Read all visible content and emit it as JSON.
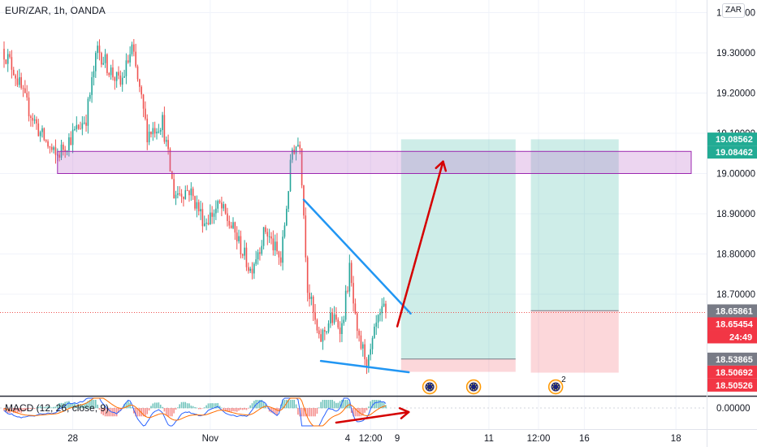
{
  "header": {
    "symbol_title": "EUR/ZAR, 1h, OANDA",
    "currency_badge": "ZAR",
    "macd_title": "MACD (12, 26, close, 9)"
  },
  "chart_data": {
    "type": "candlestick",
    "symbol": "EUR/ZAR",
    "interval": "1h",
    "source": "OANDA",
    "y_axis": {
      "ticks": [
        19.3,
        19.2,
        19.1,
        19.0,
        18.9,
        18.8,
        18.7
      ],
      "tick_labels": [
        "19.30000",
        "19.20000",
        "19.10000",
        "19.00000",
        "18.90000",
        "18.80000",
        "18.70000"
      ],
      "range": [
        18.465,
        19.44
      ],
      "partial_top_label": "19.40000"
    },
    "x_axis": {
      "ticks": [
        {
          "label": "28",
          "hour": 36
        },
        {
          "label": "Nov",
          "hour": 108
        },
        {
          "label": "4",
          "hour": 180
        },
        {
          "label": "12:00",
          "hour": 192
        },
        {
          "label": "9",
          "hour": 206
        },
        {
          "label": "11",
          "hour": 254
        },
        {
          "label": "12:00",
          "hour": 280
        },
        {
          "label": "16",
          "hour": 304
        },
        {
          "label": "18",
          "hour": 352
        }
      ],
      "range_hours": [
        0,
        380
      ]
    },
    "price_tags": [
      {
        "label": "19.08562",
        "value": 19.08562,
        "color": "#22ab94"
      },
      {
        "label": "19.08462",
        "value": 19.08462,
        "color": "#22ab94"
      },
      {
        "label": "18.65861",
        "value": 18.65861,
        "color": "#787b86"
      },
      {
        "label": "18.65454",
        "value": 18.65454,
        "color": "#f23645"
      },
      {
        "label": "24:49",
        "value": 18.624,
        "color": "#f23645"
      },
      {
        "label": "18.53865",
        "value": 18.53865,
        "color": "#787b86"
      },
      {
        "label": "18.50692",
        "value": 18.50692,
        "color": "#f23645"
      },
      {
        "label": "18.50526",
        "value": 18.50526,
        "color": "#f23645"
      }
    ],
    "last_price": 18.65454,
    "anchors": [
      {
        "h": 0,
        "p": 19.31
      },
      {
        "h": 6,
        "p": 19.26
      },
      {
        "h": 12,
        "p": 19.18
      },
      {
        "h": 20,
        "p": 19.1
      },
      {
        "h": 28,
        "p": 19.04
      },
      {
        "h": 36,
        "p": 19.09
      },
      {
        "h": 44,
        "p": 19.14
      },
      {
        "h": 50,
        "p": 19.31
      },
      {
        "h": 56,
        "p": 19.26
      },
      {
        "h": 62,
        "p": 19.22
      },
      {
        "h": 68,
        "p": 19.31
      },
      {
        "h": 76,
        "p": 19.1
      },
      {
        "h": 84,
        "p": 19.13
      },
      {
        "h": 90,
        "p": 18.95
      },
      {
        "h": 98,
        "p": 18.96
      },
      {
        "h": 106,
        "p": 18.88
      },
      {
        "h": 114,
        "p": 18.92
      },
      {
        "h": 122,
        "p": 18.85
      },
      {
        "h": 130,
        "p": 18.76
      },
      {
        "h": 138,
        "p": 18.86
      },
      {
        "h": 146,
        "p": 18.78
      },
      {
        "h": 152,
        "p": 19.06
      },
      {
        "h": 156,
        "p": 19.08
      },
      {
        "h": 160,
        "p": 18.72
      },
      {
        "h": 166,
        "p": 18.58
      },
      {
        "h": 172,
        "p": 18.64
      },
      {
        "h": 178,
        "p": 18.62
      },
      {
        "h": 182,
        "p": 18.76
      },
      {
        "h": 186,
        "p": 18.59
      },
      {
        "h": 192,
        "p": 18.53
      },
      {
        "h": 196,
        "p": 18.62
      },
      {
        "h": 200,
        "p": 18.66
      }
    ],
    "annotations": {
      "resistance_zone": {
        "h_start": 28,
        "h_end": 360,
        "p_top": 19.055,
        "p_bottom": 19.0
      },
      "upper_trendline": {
        "h1": 157,
        "p1": 18.935,
        "h2": 213,
        "p2": 18.652
      },
      "lower_trendline": {
        "h1": 166,
        "p1": 18.534,
        "h2": 212,
        "p2": 18.506
      },
      "arrow_up": {
        "h1": 206,
        "p1": 18.62,
        "h2": 230,
        "p2": 19.03
      },
      "position_1": {
        "h_start": 208,
        "h_end": 268,
        "top": 19.085,
        "entry": 18.539,
        "bottom": 18.507
      },
      "position_2": {
        "h_start": 276,
        "h_end": 322,
        "top": 19.085,
        "entry": 18.659,
        "bottom": 18.505
      }
    },
    "event_markers": [
      {
        "hour": 223
      },
      {
        "hour": 246
      },
      {
        "hour": 289,
        "count": "2"
      }
    ],
    "macd": {
      "name": "MACD (12, 26, close, 9)",
      "fast": 12,
      "slow": 26,
      "signal": 9,
      "zero_label": "0.00000",
      "arrow": {
        "h1": 174,
        "h2": 212,
        "trend": "up"
      }
    }
  }
}
